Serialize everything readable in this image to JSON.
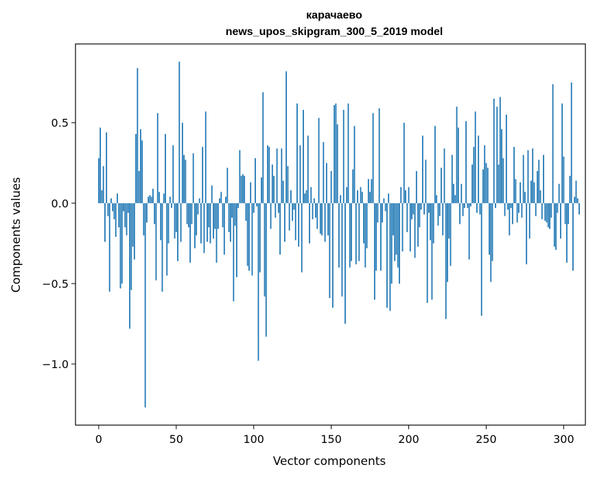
{
  "chart_data": {
    "type": "bar",
    "title_line1": "карачаево",
    "title_line2": "news_upos_skipgram_300_5_2019 model",
    "xlabel": "Vector components",
    "ylabel": "Components values",
    "xlim": [
      -15,
      314
    ],
    "ylim": [
      -1.38,
      0.99
    ],
    "xticks": [
      0,
      50,
      100,
      150,
      200,
      250,
      300
    ],
    "xtick_labels": [
      "0",
      "50",
      "100",
      "150",
      "200",
      "250",
      "300"
    ],
    "yticks": [
      0.5,
      0.0,
      -0.5,
      -1.0
    ],
    "ytick_labels": [
      "0.5",
      "0.0",
      "−0.5",
      "−1.0"
    ],
    "bar_color": "#1f77b4",
    "grid": false,
    "values": [
      0.28,
      0.47,
      0.08,
      0.23,
      -0.24,
      0.44,
      -0.08,
      -0.55,
      0.03,
      -0.05,
      -0.1,
      -0.21,
      0.06,
      -0.15,
      -0.53,
      -0.5,
      -0.05,
      -0.15,
      -0.2,
      -0.06,
      -0.78,
      -0.54,
      -0.27,
      -0.35,
      0.43,
      0.84,
      0.2,
      0.46,
      0.39,
      -0.2,
      -1.27,
      -0.12,
      0.04,
      0.05,
      0.04,
      0.09,
      -0.13,
      -0.48,
      0.56,
      0.07,
      -0.23,
      -0.55,
      0.06,
      0.43,
      -0.45,
      -0.25,
      0.04,
      -0.03,
      0.36,
      -0.22,
      -0.18,
      -0.36,
      0.88,
      -0.24,
      0.5,
      0.3,
      0.27,
      -0.13,
      -0.15,
      -0.37,
      -0.13,
      0.31,
      -0.28,
      -0.2,
      -0.07,
      0.03,
      -0.25,
      0.35,
      -0.31,
      0.57,
      -0.24,
      -0.15,
      -0.25,
      0.11,
      -0.22,
      -0.16,
      -0.37,
      -0.16,
      0.03,
      0.07,
      -0.15,
      -0.32,
      0.04,
      0.22,
      -0.18,
      -0.24,
      -0.09,
      -0.61,
      -0.14,
      -0.46,
      -0.03,
      0.33,
      0.17,
      0.18,
      0.17,
      -0.11,
      -0.39,
      -0.42,
      0.13,
      -0.45,
      -0.06,
      0.28,
      -0.02,
      -0.98,
      -0.43,
      0.16,
      0.69,
      -0.58,
      -0.83,
      0.36,
      0.35,
      -0.16,
      0.24,
      0.17,
      -0.09,
      0.34,
      -0.06,
      -0.32,
      0.34,
      0.14,
      -0.24,
      0.82,
      0.23,
      -0.17,
      0.08,
      -0.11,
      -0.04,
      -0.23,
      0.62,
      -0.27,
      0.36,
      -0.43,
      0.58,
      0.06,
      0.08,
      0.42,
      -0.25,
      0.1,
      -0.1,
      0.03,
      -0.09,
      -0.16,
      0.53,
      -0.19,
      -0.2,
      0.38,
      -0.24,
      0.25,
      -0.2,
      -0.59,
      0.2,
      -0.65,
      0.61,
      0.62,
      0.49,
      -0.4,
      0.05,
      -0.58,
      0.58,
      -0.75,
      0.1,
      0.62,
      -0.4,
      -0.36,
      0.21,
      0.48,
      -0.38,
      0.08,
      -0.36,
      0.1,
      0.07,
      -0.25,
      -0.4,
      -0.28,
      0.15,
      0.07,
      0.15,
      0.56,
      -0.6,
      -0.42,
      -0.12,
      0.59,
      -0.42,
      -0.12,
      0.03,
      -0.05,
      -0.65,
      0.06,
      -0.67,
      -0.5,
      -0.2,
      -0.36,
      -0.32,
      -0.4,
      -0.5,
      0.1,
      -0.3,
      0.5,
      0.08,
      -0.18,
      0.1,
      -0.3,
      -0.1,
      -0.07,
      -0.34,
      0.2,
      -0.27,
      -0.15,
      -0.04,
      0.42,
      -0.07,
      0.27,
      -0.62,
      -0.06,
      -0.23,
      -0.6,
      -0.25,
      0.48,
      0.05,
      -0.14,
      -0.08,
      0.22,
      -0.2,
      0.34,
      -0.72,
      -0.49,
      -0.22,
      -0.39,
      0.3,
      0.12,
      0.05,
      0.6,
      0.47,
      -0.13,
      0.12,
      -0.08,
      -0.03,
      0.51,
      -0.03,
      -0.35,
      -0.02,
      0.24,
      0.35,
      0.57,
      -0.06,
      0.42,
      -0.07,
      -0.7,
      0.21,
      0.36,
      0.25,
      0.22,
      -0.32,
      -0.49,
      -0.36,
      0.65,
      -0.03,
      0.6,
      0.24,
      0.66,
      0.46,
      0.28,
      -0.08,
      0.55,
      -0.04,
      -0.2,
      -0.03,
      -0.13,
      0.35,
      0.15,
      -0.12,
      -0.06,
      0.13,
      -0.09,
      0.3,
      0.07,
      -0.38,
      0.33,
      -0.22,
      0.14,
      0.34,
      0.13,
      -0.08,
      0.2,
      0.27,
      0.08,
      -0.1,
      0.3,
      -0.11,
      -0.12,
      -0.15,
      -0.16,
      -0.09,
      0.74,
      -0.27,
      -0.29,
      -0.06,
      0.12,
      -0.22,
      0.62,
      0.29,
      -0.13,
      -0.37,
      -0.13,
      0.17,
      0.75,
      -0.42,
      0.04,
      0.14,
      0.03,
      -0.07
    ]
  }
}
